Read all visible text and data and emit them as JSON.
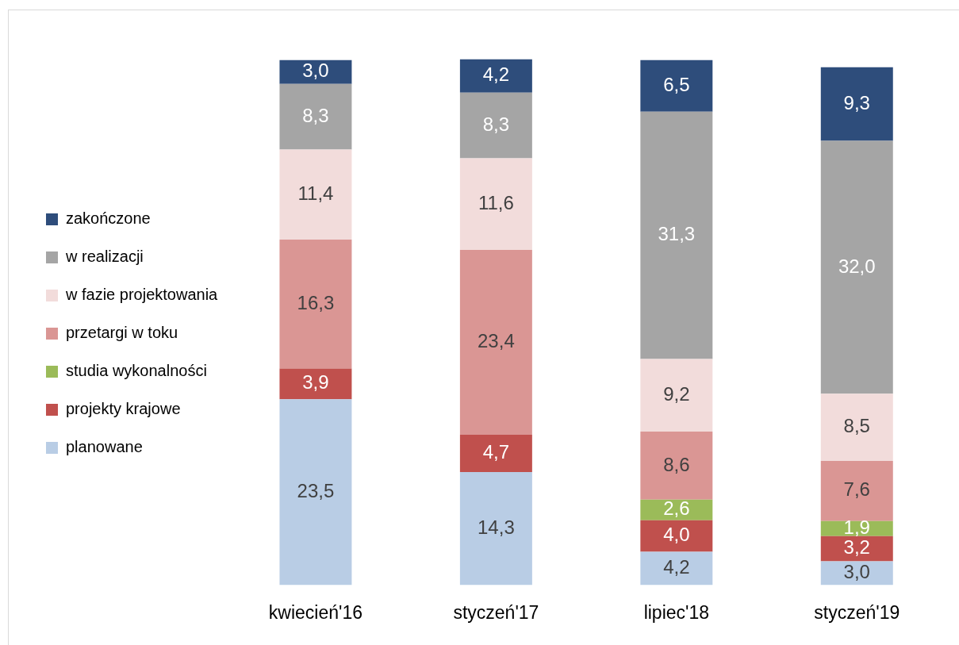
{
  "chart_data": {
    "type": "bar",
    "stacked": true,
    "legend": "left",
    "categories": [
      "kwiecień'16",
      "styczeń'17",
      "lipiec'18",
      "styczeń'19"
    ],
    "series": [
      {
        "name": "planowane",
        "color": "#b9cde5",
        "values": [
          23.5,
          14.3,
          4.2,
          3.0
        ],
        "value_labels": [
          "23,5",
          "14,3",
          "4,2",
          "3,0"
        ]
      },
      {
        "name": "projekty krajowe",
        "color": "#c0504d",
        "values": [
          3.9,
          4.7,
          4.0,
          3.2
        ],
        "value_labels": [
          "3,9",
          "4,7",
          "4,0",
          "3,2"
        ]
      },
      {
        "name": "studia wykonalności",
        "color": "#9bbb59",
        "values": [
          null,
          null,
          2.6,
          1.9
        ],
        "value_labels": [
          null,
          null,
          "2,6",
          "1,9"
        ]
      },
      {
        "name": "przetargi w toku",
        "color": "#da9694",
        "values": [
          16.3,
          23.4,
          8.6,
          7.6
        ],
        "value_labels": [
          "16,3",
          "23,4",
          "8,6",
          "7,6"
        ]
      },
      {
        "name": "w fazie projektowania",
        "color": "#f2dcdb",
        "values": [
          11.4,
          11.6,
          9.2,
          8.5
        ],
        "value_labels": [
          "11,4",
          "11,6",
          "9,2",
          "8,5"
        ]
      },
      {
        "name": "w realizacji",
        "color": "#a5a5a5",
        "values": [
          8.3,
          8.3,
          31.3,
          32.0
        ],
        "value_labels": [
          "8,3",
          "8,3",
          "31,3",
          "32,0"
        ]
      },
      {
        "name": "zakończone",
        "color": "#2e4d7b",
        "values": [
          3.0,
          4.2,
          6.5,
          9.3
        ],
        "value_labels": [
          "3,0",
          "4,2",
          "6,5",
          "9,3"
        ]
      }
    ]
  }
}
